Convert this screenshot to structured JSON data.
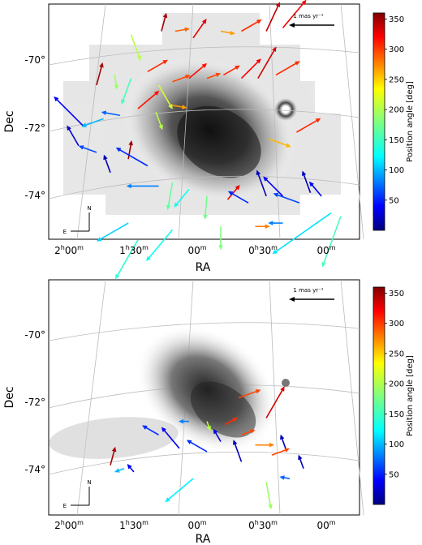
{
  "chart_data": [
    {
      "type": "scatter",
      "xlabel": "RA",
      "ylabel": "Dec",
      "x_ticks": [
        {
          "h": "2",
          "m": "00"
        },
        {
          "h": "1",
          "m": "30"
        },
        {
          "h": "",
          "m": "00"
        },
        {
          "h": "0",
          "m": "30"
        },
        {
          "h": "",
          "m": "00"
        }
      ],
      "y_ticks": [
        "-70°",
        "-72°",
        "-74°"
      ],
      "scale_label": "1 mas yr⁻¹",
      "compass": {
        "n": "N",
        "e": "E"
      },
      "colorbar": {
        "label": "Position angle [deg]",
        "ticks": [
          "50",
          "100",
          "150",
          "200",
          "250",
          "300",
          "350"
        ],
        "range": [
          0,
          360
        ]
      },
      "series": [
        {
          "note_units": "x,y in degrees offset from map; pa in deg, len in mas/yr",
          "vectors": [
            [
              1.6,
              -69.1,
              200,
              0.6
            ],
            [
              1.38,
              -69.0,
              345,
              0.4
            ],
            [
              1.28,
              -69.0,
              280,
              0.3
            ],
            [
              1.15,
              -69.2,
              325,
              0.5
            ],
            [
              0.95,
              -69.0,
              260,
              0.3
            ],
            [
              0.8,
              -69.0,
              300,
              0.5
            ],
            [
              0.62,
              -69.0,
              335,
              0.7
            ],
            [
              0.5,
              -68.9,
              320,
              0.8
            ],
            [
              1.85,
              -70.6,
              345,
              0.5
            ],
            [
              1.72,
              -70.3,
              190,
              0.3
            ],
            [
              1.6,
              -70.4,
              160,
              0.6
            ],
            [
              1.48,
              -70.2,
              300,
              0.5
            ],
            [
              1.4,
              -70.6,
              210,
              0.6
            ],
            [
              1.3,
              -70.5,
              290,
              0.4
            ],
            [
              1.18,
              -70.4,
              310,
              0.5
            ],
            [
              1.05,
              -70.4,
              290,
              0.3
            ],
            [
              0.93,
              -70.3,
              300,
              0.4
            ],
            [
              0.8,
              -70.4,
              315,
              0.6
            ],
            [
              0.68,
              -70.4,
              330,
              0.8
            ],
            [
              0.55,
              -70.3,
              300,
              0.6
            ],
            [
              1.95,
              -71.8,
              45,
              0.9
            ],
            [
              1.8,
              -71.6,
              110,
              0.5
            ],
            [
              1.68,
              -71.5,
              80,
              0.4
            ],
            [
              1.55,
              -71.3,
              310,
              0.6
            ],
            [
              1.42,
              -71.4,
              200,
              0.4
            ],
            [
              1.3,
              -71.2,
              260,
              0.3
            ],
            [
              0.6,
              -72.2,
              250,
              0.5
            ],
            [
              0.4,
              -72.0,
              300,
              0.6
            ],
            [
              1.98,
              -72.4,
              30,
              0.5
            ],
            [
              1.85,
              -72.6,
              70,
              0.4
            ],
            [
              1.75,
              -73.2,
              20,
              0.4
            ],
            [
              1.62,
              -72.8,
              350,
              0.4
            ],
            [
              1.48,
              -73.0,
              60,
              0.8
            ],
            [
              1.4,
              -73.6,
              90,
              0.7
            ],
            [
              1.3,
              -73.5,
              170,
              0.6
            ],
            [
              1.18,
              -73.7,
              140,
              0.5
            ],
            [
              1.05,
              -73.9,
              175,
              0.5
            ],
            [
              0.9,
              -74.0,
              320,
              0.4
            ],
            [
              0.75,
              -74.1,
              60,
              0.5
            ],
            [
              0.62,
              -73.9,
              20,
              0.6
            ],
            [
              0.5,
              -73.9,
              45,
              0.6
            ],
            [
              0.38,
              -74.1,
              70,
              0.6
            ],
            [
              0.3,
              -73.8,
              20,
              0.5
            ],
            [
              0.22,
              -73.9,
              40,
              0.4
            ],
            [
              0.15,
              -74.4,
              125,
              1.6
            ],
            [
              0.08,
              -74.5,
              160,
              1.2
            ],
            [
              1.55,
              -75.2,
              150,
              1.0
            ],
            [
              1.3,
              -74.9,
              140,
              0.9
            ],
            [
              1.62,
              -74.7,
              120,
              0.8
            ],
            [
              0.95,
              -74.8,
              180,
              0.5
            ],
            [
              0.7,
              -74.8,
              270,
              0.3
            ],
            [
              0.5,
              -74.7,
              90,
              0.3
            ]
          ]
        }
      ]
    },
    {
      "type": "scatter",
      "xlabel": "RA",
      "ylabel": "Dec",
      "x_ticks": [
        {
          "h": "2",
          "m": "00"
        },
        {
          "h": "1",
          "m": "30"
        },
        {
          "h": "",
          "m": "00"
        },
        {
          "h": "0",
          "m": "30"
        },
        {
          "h": "",
          "m": "00"
        }
      ],
      "y_ticks": [
        "-70°",
        "-72°",
        "-74°"
      ],
      "scale_label": "1 mas yr⁻¹",
      "compass": {
        "n": "N",
        "e": "E"
      },
      "colorbar": {
        "label": "Position angle [deg]",
        "ticks": [
          "50",
          "100",
          "150",
          "200",
          "250",
          "300",
          "350"
        ],
        "range": [
          0,
          360
        ]
      },
      "series": [
        {
          "vectors": [
            [
              0.82,
              -71.7,
              290,
              0.5
            ],
            [
              0.62,
              -72.3,
              330,
              0.8
            ],
            [
              0.92,
              -72.5,
              300,
              0.3
            ],
            [
              1.05,
              -72.4,
              200,
              0.2
            ],
            [
              1.18,
              -72.4,
              90,
              0.2
            ],
            [
              1.4,
              -72.8,
              60,
              0.4
            ],
            [
              1.25,
              -73.2,
              40,
              0.6
            ],
            [
              1.05,
              -73.3,
              60,
              0.5
            ],
            [
              0.95,
              -73.0,
              30,
              0.3
            ],
            [
              0.8,
              -72.8,
              290,
              0.3
            ],
            [
              0.7,
              -73.1,
              270,
              0.4
            ],
            [
              0.58,
              -73.4,
              290,
              0.4
            ],
            [
              0.48,
              -73.2,
              20,
              0.3
            ],
            [
              0.8,
              -73.6,
              20,
              0.5
            ],
            [
              1.75,
              -73.7,
              345,
              0.4
            ],
            [
              1.65,
              -73.8,
              110,
              0.2
            ],
            [
              1.58,
              -73.9,
              40,
              0.2
            ],
            [
              1.15,
              -74.1,
              130,
              0.8
            ],
            [
              0.62,
              -74.2,
              190,
              0.6
            ],
            [
              0.45,
              -74.1,
              80,
              0.2
            ],
            [
              0.35,
              -73.8,
              20,
              0.3
            ]
          ]
        }
      ]
    }
  ]
}
